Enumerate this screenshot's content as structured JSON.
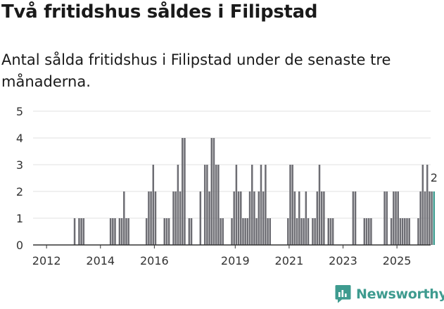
{
  "title": "Två fritidshus såldes i Filipstad",
  "subtitle": "Antal sålda fritidshus i Filipstad under de senaste tre månaderna.",
  "brand": "Newsworthy",
  "colors": {
    "bar": "#6d6d73",
    "highlight": "#3e9b8f",
    "grid": "#e2e2e2",
    "axis": "#333333"
  },
  "chart_data": {
    "type": "bar",
    "ylim": [
      0,
      5
    ],
    "yticks": [
      0,
      1,
      2,
      3,
      4,
      5
    ],
    "xlim": [
      2011.5,
      2026.25
    ],
    "xticks": [
      {
        "label": "2012",
        "at": 2012.0
      },
      {
        "label": "2014",
        "at": 2014.0
      },
      {
        "label": "2016",
        "at": 2016.0
      },
      {
        "label": "2019",
        "at": 2019.0
      },
      {
        "label": "2021",
        "at": 2021.0
      },
      {
        "label": "2023",
        "at": 2023.0
      },
      {
        "label": "2025",
        "at": 2025.0
      }
    ],
    "start": "2011-11",
    "values": [
      0,
      0,
      0,
      0,
      0,
      0,
      0,
      0,
      0,
      0,
      0,
      0,
      0,
      0,
      1,
      0,
      1,
      1,
      1,
      0,
      0,
      0,
      0,
      0,
      0,
      0,
      0,
      0,
      0,
      0,
      1,
      1,
      1,
      0,
      1,
      1,
      2,
      1,
      1,
      0,
      0,
      0,
      0,
      0,
      0,
      0,
      1,
      2,
      2,
      3,
      2,
      0,
      0,
      0,
      1,
      1,
      1,
      0,
      2,
      2,
      3,
      2,
      4,
      4,
      0,
      1,
      1,
      0,
      0,
      0,
      2,
      0,
      3,
      3,
      2,
      4,
      4,
      3,
      3,
      1,
      1,
      0,
      0,
      0,
      1,
      2,
      3,
      2,
      2,
      1,
      1,
      1,
      2,
      3,
      2,
      1,
      2,
      3,
      2,
      3,
      1,
      1,
      0,
      0,
      0,
      0,
      0,
      0,
      0,
      1,
      3,
      3,
      2,
      1,
      2,
      1,
      1,
      2,
      1,
      0,
      1,
      1,
      2,
      3,
      2,
      2,
      0,
      1,
      1,
      1,
      0,
      0,
      0,
      0,
      0,
      0,
      0,
      0,
      2,
      2,
      0,
      0,
      0,
      1,
      1,
      1,
      1,
      0,
      0,
      0,
      0,
      0,
      2,
      2,
      0,
      1,
      2,
      2,
      2,
      1,
      1,
      1,
      1,
      1,
      0,
      0,
      0,
      1,
      2,
      3,
      2,
      3,
      2,
      2,
      2
    ],
    "highlight_last": true,
    "last_label": "2"
  }
}
